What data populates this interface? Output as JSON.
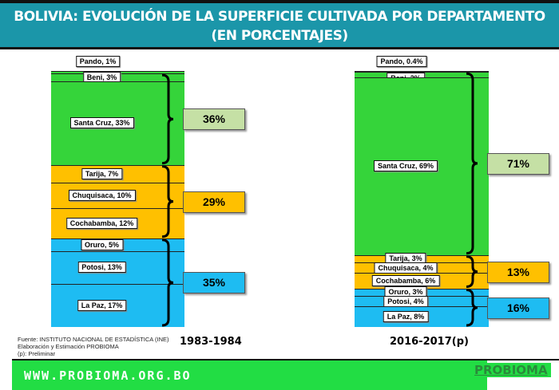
{
  "header": {
    "title_line1": "BOLIVIA: EVOLUCIÓN DE LA SUPERFICIE CULTIVADA POR DEPARTAMENTO",
    "title_line2": "(EN PORCENTAJES)"
  },
  "chart_data": {
    "type": "bar",
    "stacked": true,
    "title": "BOLIVIA: EVOLUCIÓN DE LA SUPERFICIE CULTIVADA POR DEPARTAMENTO (EN PORCENTAJES)",
    "categories": [
      "1983-1984",
      "2016-2017(p)"
    ],
    "colors": {
      "green": "#35d43a",
      "yellow": "#ffc000",
      "blue": "#1ebcf2",
      "green_box": "#c5e0a5"
    },
    "bars": [
      {
        "period": "1983-1984",
        "segments": [
          {
            "name": "Pando",
            "value": 1,
            "label": "Pando, 1%",
            "group": "green"
          },
          {
            "name": "Beni",
            "value": 3,
            "label": "Beni, 3%",
            "group": "green"
          },
          {
            "name": "Santa Cruz",
            "value": 33,
            "label": "Santa Cruz, 33%",
            "group": "green"
          },
          {
            "name": "Tarija",
            "value": 7,
            "label": "Tarija, 7%",
            "group": "yellow"
          },
          {
            "name": "Chuquisaca",
            "value": 10,
            "label": "Chuquisaca, 10%",
            "group": "yellow"
          },
          {
            "name": "Cochabamba",
            "value": 12,
            "label": "Cochabamba, 12%",
            "group": "yellow"
          },
          {
            "name": "Oruro",
            "value": 5,
            "label": "Oruro, 5%",
            "group": "blue"
          },
          {
            "name": "Potosi",
            "value": 13,
            "label": "Potosi, 13%",
            "group": "blue"
          },
          {
            "name": "La Paz",
            "value": 17,
            "label": "La Paz, 17%",
            "group": "blue"
          }
        ],
        "groups": [
          {
            "group": "green",
            "label": "36%",
            "value": 36
          },
          {
            "group": "yellow",
            "label": "29%",
            "value": 29
          },
          {
            "group": "blue",
            "label": "35%",
            "value": 35
          }
        ]
      },
      {
        "period": "2016-2017(p)",
        "segments": [
          {
            "name": "Pando",
            "value": 0.4,
            "label": "Pando, 0.4%",
            "group": "green"
          },
          {
            "name": "Beni",
            "value": 2,
            "label": "Beni, 2%",
            "group": "green"
          },
          {
            "name": "Santa Cruz",
            "value": 69,
            "label": "Santa Cruz, 69%",
            "group": "green"
          },
          {
            "name": "Tarija",
            "value": 3,
            "label": "Tarija, 3%",
            "group": "yellow"
          },
          {
            "name": "Chuquisaca",
            "value": 4,
            "label": "Chuquisaca, 4%",
            "group": "yellow"
          },
          {
            "name": "Cochabamba",
            "value": 6,
            "label": "Cochabamba, 6%",
            "group": "yellow"
          },
          {
            "name": "Oruro",
            "value": 3,
            "label": "Oruro, 3%",
            "group": "blue"
          },
          {
            "name": "Potosi",
            "value": 4,
            "label": "Potosi, 4%",
            "group": "blue"
          },
          {
            "name": "La Paz",
            "value": 8,
            "label": "La Paz, 8%",
            "group": "blue"
          }
        ],
        "groups": [
          {
            "group": "green",
            "label": "71%",
            "value": 71
          },
          {
            "group": "yellow",
            "label": "13%",
            "value": 13
          },
          {
            "group": "blue",
            "label": "16%",
            "value": 16
          }
        ]
      }
    ]
  },
  "source": {
    "line1": "Fuente:  INSTITUTO NACIONAL DE ESTADÍSTICA (INE)",
    "line2": "Elaboración y Estimación  PROBIOMA",
    "line3": "(p): Preliminar"
  },
  "footer": {
    "url": "WWW.PROBIOMA.ORG.BO",
    "logo": "PROBIOMA"
  }
}
